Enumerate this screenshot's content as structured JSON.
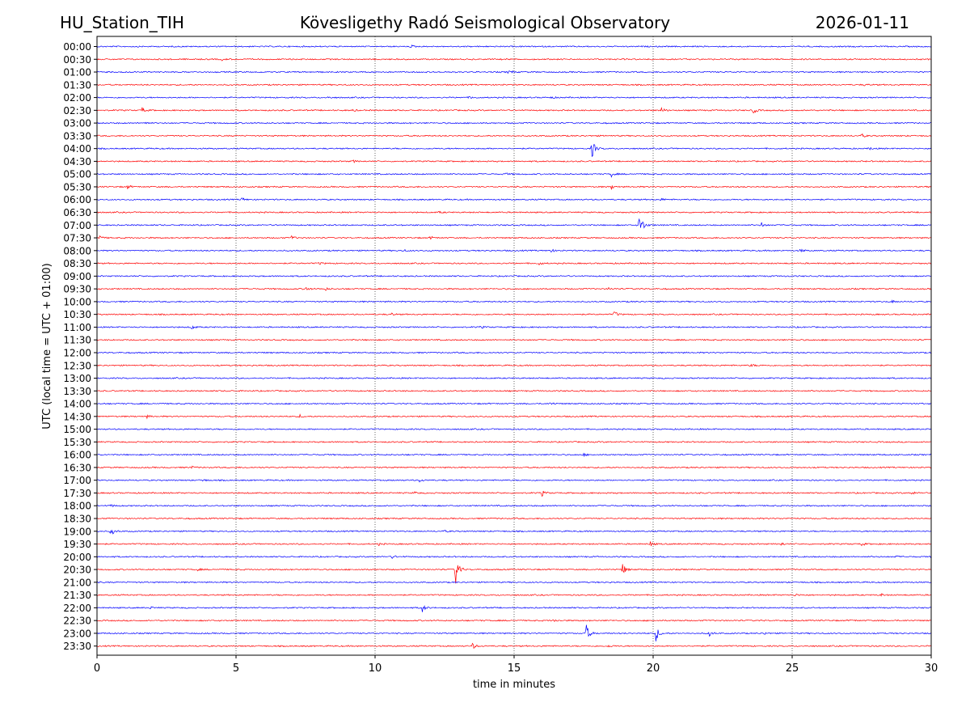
{
  "header": {
    "station": "HU_Station_TIH",
    "title": "Kövesligethy Radó Seismological Observatory",
    "date": "2026-01-11"
  },
  "chart_data": {
    "type": "line",
    "title": "Kövesligethy Radó Seismological Observatory",
    "xlabel": "time in minutes",
    "ylabel": "UTC (local time = UTC + 01:00)",
    "xlim": [
      0,
      30
    ],
    "x_ticks": [
      "0",
      "5",
      "10",
      "15",
      "20",
      "25",
      "30"
    ],
    "x_tick_values": [
      0,
      5,
      10,
      15,
      20,
      25,
      30
    ],
    "grid": "vertical dotted lines at x = 5, 10, 15, 20, 25",
    "trace_colors": [
      "#0000ff",
      "#ff0000"
    ],
    "rows": [
      "00:00",
      "00:30",
      "01:00",
      "01:30",
      "02:00",
      "02:30",
      "03:00",
      "03:30",
      "04:00",
      "04:30",
      "05:00",
      "05:30",
      "06:00",
      "06:30",
      "07:00",
      "07:30",
      "08:00",
      "08:30",
      "09:00",
      "09:30",
      "10:00",
      "10:30",
      "11:00",
      "11:30",
      "12:00",
      "12:30",
      "13:00",
      "13:30",
      "14:00",
      "14:30",
      "15:00",
      "15:30",
      "16:00",
      "16:30",
      "17:00",
      "17:30",
      "18:00",
      "18:30",
      "19:00",
      "19:30",
      "20:00",
      "20:30",
      "21:00",
      "21:30",
      "22:00",
      "22:30",
      "23:00",
      "23:30"
    ],
    "events": [
      {
        "row": 0,
        "t": 11.3,
        "amp": 1.5
      },
      {
        "row": 1,
        "t": 4.5,
        "amp": 1.2
      },
      {
        "row": 2,
        "t": 14.8,
        "amp": 3.0
      },
      {
        "row": 3,
        "t": 27.6,
        "amp": 1.2
      },
      {
        "row": 4,
        "t": 13.4,
        "amp": 1.5
      },
      {
        "row": 4,
        "t": 16.3,
        "amp": 1.2
      },
      {
        "row": 4,
        "t": 8.3,
        "amp": 1.0
      },
      {
        "row": 5,
        "t": 1.6,
        "amp": 4.0
      },
      {
        "row": 5,
        "t": 9.2,
        "amp": 1.5
      },
      {
        "row": 5,
        "t": 20.3,
        "amp": 3.5
      },
      {
        "row": 5,
        "t": 23.6,
        "amp": 4.5
      },
      {
        "row": 6,
        "t": 1.7,
        "amp": 2.5
      },
      {
        "row": 7,
        "t": 27.5,
        "amp": 2.5
      },
      {
        "row": 8,
        "t": 17.8,
        "amp": 12.0
      },
      {
        "row": 8,
        "t": 27.8,
        "amp": 1.5
      },
      {
        "row": 9,
        "t": 9.2,
        "amp": 1.5
      },
      {
        "row": 10,
        "t": 18.5,
        "amp": 3.0
      },
      {
        "row": 10,
        "t": 14.7,
        "amp": 1.2
      },
      {
        "row": 11,
        "t": 1.1,
        "amp": 2.5
      },
      {
        "row": 11,
        "t": 18.5,
        "amp": 2.5
      },
      {
        "row": 12,
        "t": 5.2,
        "amp": 2.5
      },
      {
        "row": 12,
        "t": 20.3,
        "amp": 1.5
      },
      {
        "row": 13,
        "t": 12.3,
        "amp": 1.2
      },
      {
        "row": 14,
        "t": 19.5,
        "amp": 21.0
      },
      {
        "row": 14,
        "t": 23.9,
        "amp": 3.5
      },
      {
        "row": 15,
        "t": 0.1,
        "amp": 2.5
      },
      {
        "row": 15,
        "t": 7.0,
        "amp": 2.5
      },
      {
        "row": 15,
        "t": 12.0,
        "amp": 2.0
      },
      {
        "row": 16,
        "t": 16.3,
        "amp": 2.5
      },
      {
        "row": 16,
        "t": 25.3,
        "amp": 2.0
      },
      {
        "row": 16,
        "t": 11.0,
        "amp": 1.5
      },
      {
        "row": 17,
        "t": 15.9,
        "amp": 2.0
      },
      {
        "row": 17,
        "t": 8.0,
        "amp": 1.5
      },
      {
        "row": 19,
        "t": 7.5,
        "amp": 3.0
      },
      {
        "row": 19,
        "t": 8.2,
        "amp": 2.0
      },
      {
        "row": 19,
        "t": 18.4,
        "amp": 1.5
      },
      {
        "row": 20,
        "t": 28.6,
        "amp": 1.5
      },
      {
        "row": 21,
        "t": 18.6,
        "amp": 4.0
      },
      {
        "row": 21,
        "t": 10.6,
        "amp": 1.5
      },
      {
        "row": 22,
        "t": 3.4,
        "amp": 3.0
      },
      {
        "row": 22,
        "t": 13.8,
        "amp": 1.5
      },
      {
        "row": 25,
        "t": 23.5,
        "amp": 2.0
      },
      {
        "row": 28,
        "t": 16.3,
        "amp": 2.0
      },
      {
        "row": 29,
        "t": 7.3,
        "amp": 2.0
      },
      {
        "row": 29,
        "t": 1.8,
        "amp": 1.5
      },
      {
        "row": 32,
        "t": 17.5,
        "amp": 1.5
      },
      {
        "row": 33,
        "t": 3.4,
        "amp": 1.5
      },
      {
        "row": 34,
        "t": 11.6,
        "amp": 2.0
      },
      {
        "row": 34,
        "t": 3.8,
        "amp": 1.5
      },
      {
        "row": 35,
        "t": 16.0,
        "amp": 3.5
      },
      {
        "row": 35,
        "t": 11.4,
        "amp": 2.0
      },
      {
        "row": 35,
        "t": 29.3,
        "amp": 2.0
      },
      {
        "row": 36,
        "t": 0.5,
        "amp": 2.0
      },
      {
        "row": 38,
        "t": 0.5,
        "amp": 6.0
      },
      {
        "row": 38,
        "t": 12.5,
        "amp": 1.2
      },
      {
        "row": 39,
        "t": 19.9,
        "amp": 3.0
      },
      {
        "row": 39,
        "t": 27.5,
        "amp": 2.0
      },
      {
        "row": 39,
        "t": 24.6,
        "amp": 2.0
      },
      {
        "row": 39,
        "t": 10.1,
        "amp": 1.5
      },
      {
        "row": 40,
        "t": 10.6,
        "amp": 2.5
      },
      {
        "row": 40,
        "t": 28.7,
        "amp": 1.5
      },
      {
        "row": 41,
        "t": 12.9,
        "amp": 22.0
      },
      {
        "row": 41,
        "t": 18.9,
        "amp": 8.0
      },
      {
        "row": 41,
        "t": 3.6,
        "amp": 1.5
      },
      {
        "row": 43,
        "t": 25.1,
        "amp": 1.5
      },
      {
        "row": 43,
        "t": 28.2,
        "amp": 1.5
      },
      {
        "row": 44,
        "t": 11.7,
        "amp": 5.0
      },
      {
        "row": 44,
        "t": 1.9,
        "amp": 1.5
      },
      {
        "row": 45,
        "t": 16.4,
        "amp": 2.0
      },
      {
        "row": 45,
        "t": 27.1,
        "amp": 1.5
      },
      {
        "row": 46,
        "t": 17.6,
        "amp": 11.0
      },
      {
        "row": 46,
        "t": 20.1,
        "amp": 10.0
      },
      {
        "row": 46,
        "t": 22.0,
        "amp": 4.0
      },
      {
        "row": 46,
        "t": 24.0,
        "amp": 1.5
      },
      {
        "row": 47,
        "t": 13.5,
        "amp": 3.5
      },
      {
        "row": 47,
        "t": 18.4,
        "amp": 1.5
      }
    ]
  }
}
